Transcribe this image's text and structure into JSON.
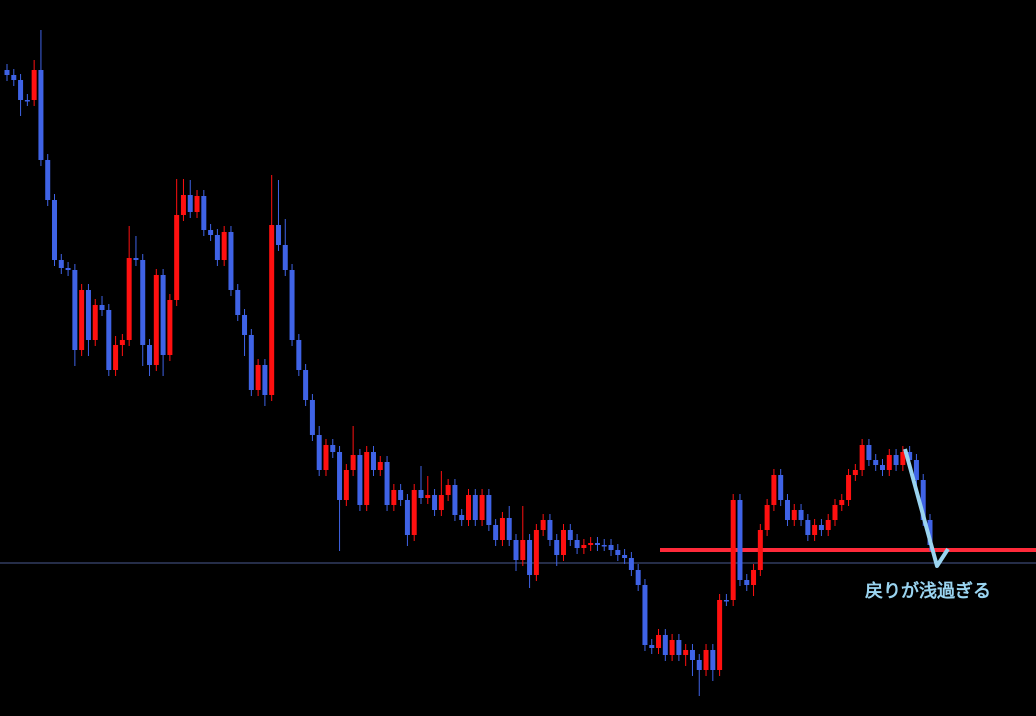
{
  "chart_data": {
    "type": "candlestick",
    "up_color": "#ff1010",
    "down_color": "#3f63e6",
    "ylim": [
      0,
      716
    ],
    "open": [
      646,
      641,
      636,
      616,
      616,
      646,
      556,
      516,
      456,
      448,
      446,
      366,
      426,
      376,
      411,
      406,
      346,
      371,
      376,
      458,
      456,
      371,
      351,
      441,
      361,
      416,
      501,
      521,
      504,
      520,
      486,
      481,
      456,
      484,
      426,
      401,
      381,
      326,
      351,
      321,
      491,
      471,
      446,
      376,
      346,
      316,
      281,
      246,
      271,
      264,
      216,
      246,
      261,
      211,
      264,
      246,
      254,
      211,
      226,
      216,
      181,
      226,
      218,
      221,
      206,
      221,
      231,
      201,
      196,
      221,
      196,
      221,
      191,
      176,
      198,
      176,
      156,
      176,
      141,
      186,
      196,
      176,
      161,
      186,
      176,
      168,
      171,
      173,
      171,
      171,
      166,
      161,
      158,
      146,
      131,
      71,
      68,
      81,
      61,
      76,
      61,
      66,
      56,
      46,
      66,
      46,
      116,
      116,
      216,
      136,
      131,
      146,
      186,
      211,
      241,
      216,
      196,
      206,
      196,
      181,
      191,
      186,
      196,
      211,
      216,
      241,
      246,
      271,
      256,
      251,
      246,
      261,
      251,
      264,
      256,
      236,
      196
    ],
    "high": [
      652,
      647,
      642,
      622,
      656,
      686,
      562,
      522,
      462,
      454,
      452,
      432,
      432,
      417,
      420,
      412,
      380,
      382,
      490,
      480,
      462,
      377,
      447,
      447,
      422,
      537,
      537,
      536,
      526,
      526,
      492,
      487,
      490,
      490,
      432,
      407,
      387,
      357,
      357,
      541,
      536,
      497,
      452,
      382,
      352,
      322,
      290,
      277,
      277,
      270,
      252,
      290,
      267,
      270,
      270,
      260,
      260,
      232,
      232,
      222,
      232,
      250,
      240,
      227,
      245,
      237,
      237,
      207,
      227,
      227,
      227,
      227,
      197,
      204,
      210,
      182,
      210,
      182,
      192,
      202,
      202,
      182,
      192,
      192,
      182,
      177,
      179,
      179,
      177,
      177,
      172,
      167,
      164,
      152,
      137,
      77,
      87,
      87,
      82,
      82,
      72,
      72,
      62,
      72,
      72,
      122,
      122,
      222,
      222,
      142,
      152,
      192,
      217,
      247,
      247,
      222,
      212,
      212,
      202,
      197,
      197,
      202,
      217,
      222,
      247,
      252,
      277,
      277,
      262,
      257,
      267,
      267,
      270,
      270,
      262,
      242,
      202
    ],
    "low": [
      635,
      630,
      600,
      610,
      610,
      550,
      510,
      450,
      442,
      440,
      350,
      360,
      360,
      370,
      400,
      340,
      340,
      360,
      370,
      450,
      350,
      340,
      345,
      340,
      355,
      410,
      495,
      498,
      498,
      480,
      475,
      450,
      450,
      420,
      395,
      360,
      320,
      320,
      310,
      315,
      465,
      440,
      370,
      340,
      310,
      275,
      240,
      240,
      258,
      165,
      210,
      240,
      205,
      205,
      240,
      240,
      205,
      205,
      210,
      170,
      175,
      212,
      212,
      200,
      200,
      215,
      195,
      190,
      190,
      190,
      190,
      185,
      170,
      170,
      170,
      145,
      150,
      128,
      135,
      180,
      170,
      150,
      155,
      170,
      162,
      162,
      165,
      165,
      165,
      160,
      155,
      152,
      140,
      125,
      65,
      62,
      62,
      55,
      55,
      55,
      50,
      40,
      20,
      40,
      35,
      40,
      110,
      110,
      130,
      125,
      120,
      140,
      180,
      205,
      210,
      190,
      190,
      190,
      175,
      175,
      180,
      180,
      190,
      205,
      210,
      235,
      240,
      250,
      245,
      240,
      240,
      245,
      245,
      250,
      230,
      190,
      165
    ],
    "close": [
      641,
      636,
      616,
      616,
      646,
      556,
      516,
      456,
      448,
      446,
      366,
      426,
      376,
      411,
      406,
      346,
      371,
      376,
      458,
      456,
      371,
      351,
      441,
      361,
      416,
      501,
      521,
      504,
      520,
      486,
      481,
      456,
      484,
      426,
      401,
      381,
      326,
      351,
      321,
      491,
      471,
      446,
      376,
      346,
      316,
      281,
      246,
      271,
      264,
      216,
      246,
      261,
      211,
      264,
      246,
      254,
      211,
      226,
      216,
      181,
      226,
      218,
      221,
      206,
      221,
      231,
      201,
      196,
      221,
      196,
      221,
      191,
      176,
      198,
      176,
      156,
      176,
      141,
      186,
      196,
      176,
      161,
      186,
      176,
      168,
      171,
      173,
      171,
      171,
      166,
      161,
      158,
      146,
      131,
      71,
      68,
      81,
      61,
      76,
      61,
      66,
      56,
      46,
      66,
      46,
      116,
      116,
      216,
      136,
      131,
      146,
      186,
      211,
      241,
      216,
      196,
      206,
      196,
      181,
      191,
      186,
      196,
      211,
      216,
      241,
      246,
      271,
      256,
      251,
      246,
      261,
      251,
      264,
      256,
      236,
      196,
      171
    ],
    "levels": [
      {
        "value": 153,
        "color": "#4a5a90"
      },
      {
        "value": 166,
        "color": "#ff2a3a"
      }
    ],
    "annotation": "戻りが浅過ぎる"
  }
}
